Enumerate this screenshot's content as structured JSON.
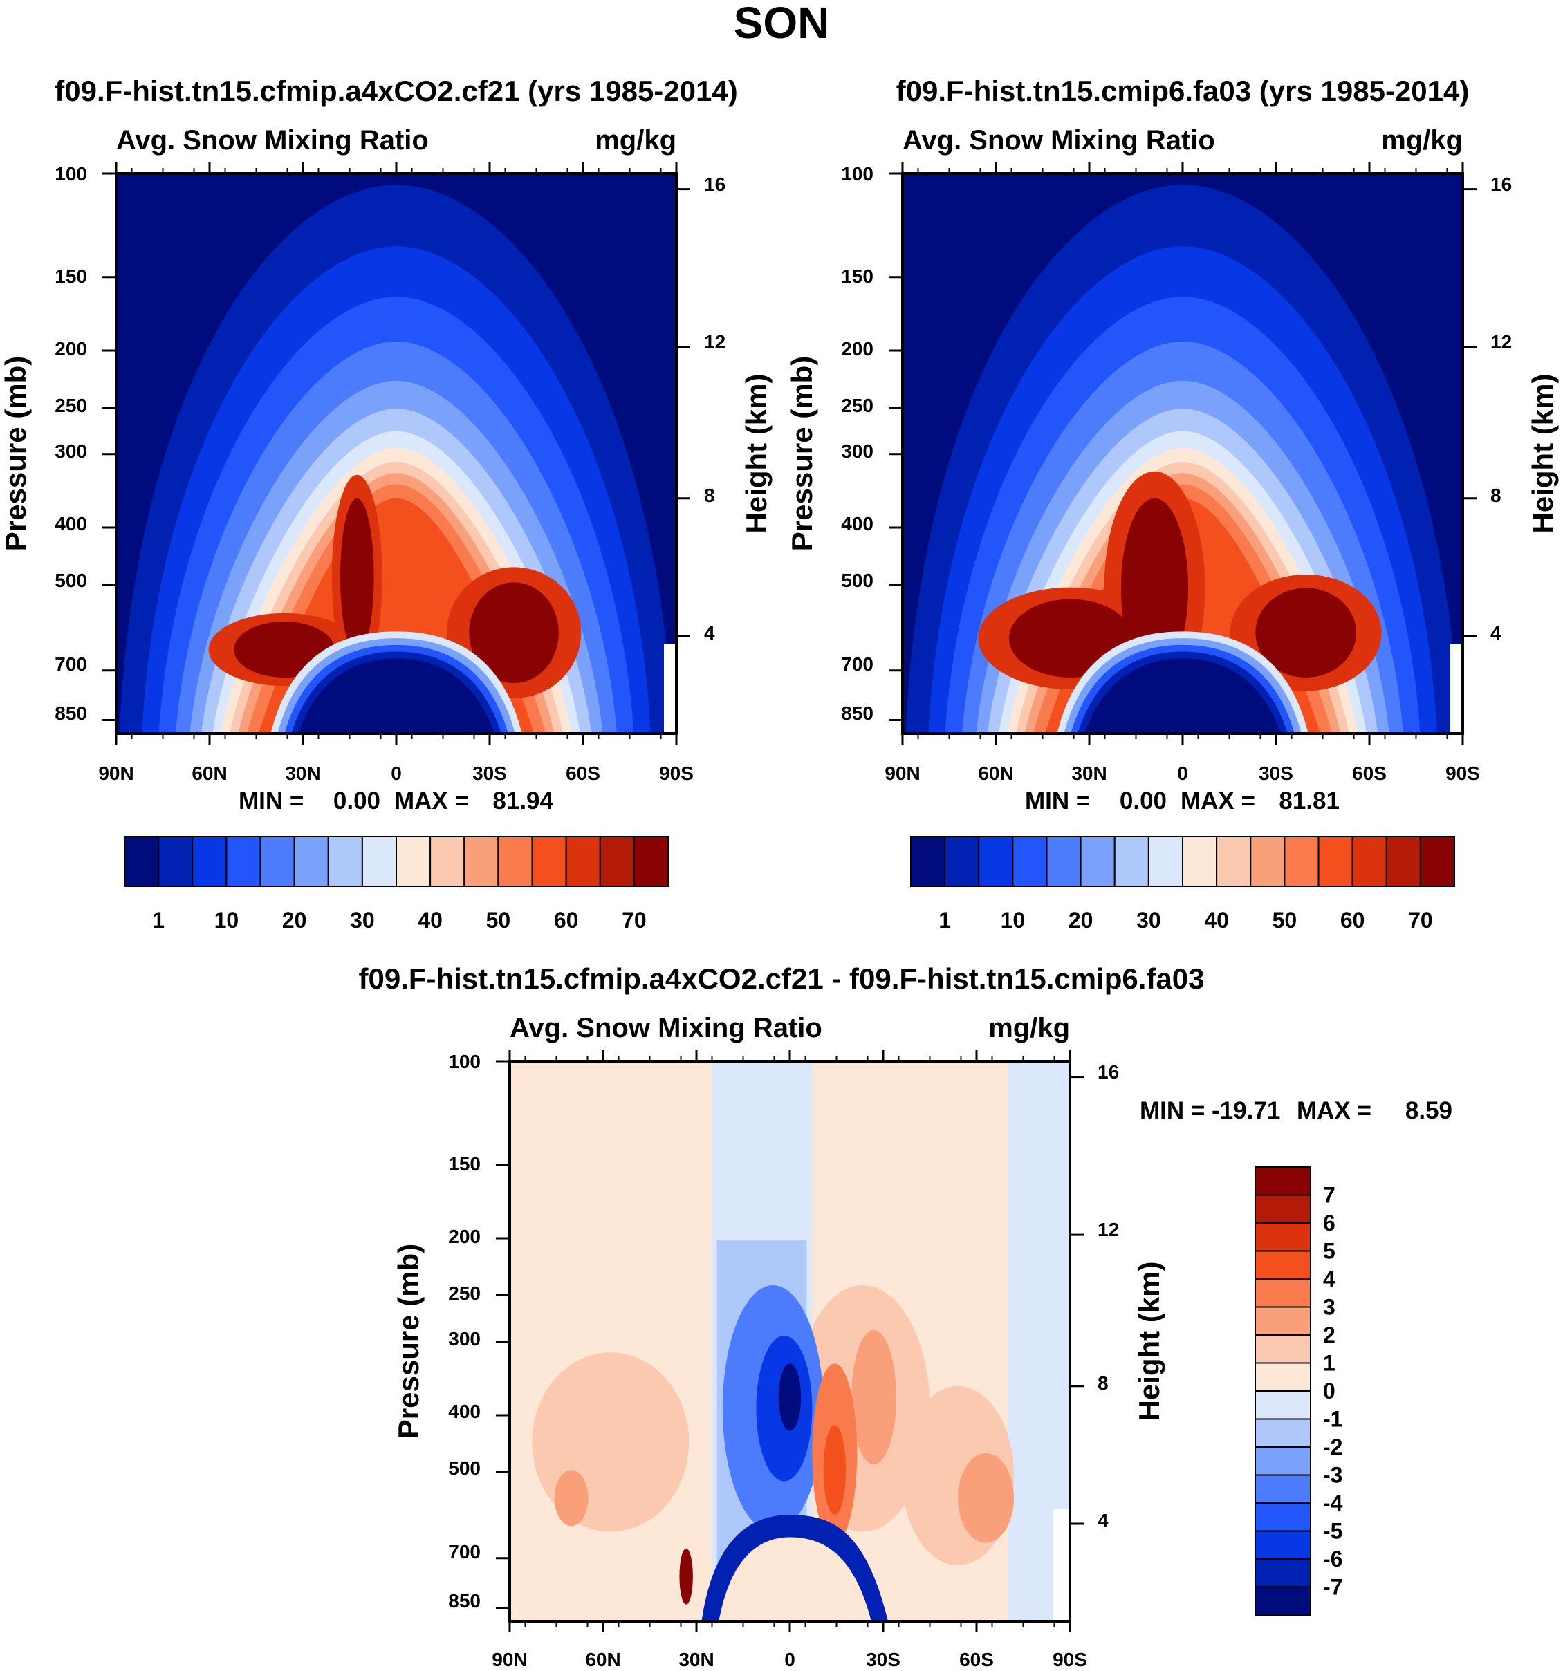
{
  "title": "SON",
  "colors": {
    "abs_scale": [
      "#000c7e",
      "#0021b2",
      "#0838e6",
      "#2356fa",
      "#4c7cfb",
      "#7ba2fb",
      "#aec8fb",
      "#dbe8fc",
      "#fde8d8",
      "#fbc8b0",
      "#f9a07b",
      "#f97a4c",
      "#f4501d",
      "#dc330e",
      "#b31b08",
      "#8a0304"
    ],
    "diff_scale": [
      "#000c7e",
      "#0021b2",
      "#0838e6",
      "#2356fa",
      "#4c7cfb",
      "#7ba2fb",
      "#aec8fb",
      "#dbe8fc",
      "#fde8d8",
      "#fbc8b0",
      "#f9a07b",
      "#f97a4c",
      "#f4501d",
      "#dc330e",
      "#b31b08",
      "#8a0304"
    ]
  },
  "chart_data": [
    {
      "type": "heatmap",
      "title": "f09.F-hist.tn15.cfmip.a4xCO2.cf21 (yrs 1985-2014)",
      "subtitle_left": "Avg. Snow Mixing Ratio",
      "subtitle_right": "mg/kg",
      "xlabel": "",
      "ylabel": "Pressure (mb)",
      "y2label": "Height (km)",
      "x_ticks": [
        "90N",
        "60N",
        "30N",
        "0",
        "30S",
        "60S",
        "90S"
      ],
      "y_ticks": [
        "100",
        "150",
        "200",
        "250",
        "300",
        "400",
        "500",
        "700",
        "850"
      ],
      "y2_ticks": [
        "16",
        "12",
        "8",
        "4"
      ],
      "min_label": "MIN =",
      "min_value": "0.00",
      "max_label": "MAX =",
      "max_value": "81.94",
      "colorbar_labels": [
        "1",
        "10",
        "20",
        "30",
        "40",
        "50",
        "60",
        "70"
      ],
      "peak_lat": [
        -38,
        30
      ],
      "max": 81.94
    },
    {
      "type": "heatmap",
      "title": "f09.F-hist.tn15.cmip6.fa03 (yrs 1985-2014)",
      "subtitle_left": "Avg. Snow Mixing Ratio",
      "subtitle_right": "mg/kg",
      "xlabel": "",
      "ylabel": "Pressure (mb)",
      "y2label": "Height (km)",
      "x_ticks": [
        "90N",
        "60N",
        "30N",
        "0",
        "30S",
        "60S",
        "90S"
      ],
      "y_ticks": [
        "100",
        "150",
        "200",
        "250",
        "300",
        "400",
        "500",
        "700",
        "850"
      ],
      "y2_ticks": [
        "16",
        "12",
        "8",
        "4"
      ],
      "min_label": "MIN =",
      "min_value": "0.00",
      "max_label": "MAX =",
      "max_value": "81.81",
      "colorbar_labels": [
        "1",
        "10",
        "20",
        "30",
        "40",
        "50",
        "60",
        "70"
      ],
      "peak_lat": [
        -38,
        30
      ],
      "max": 81.81
    },
    {
      "type": "heatmap",
      "title": "f09.F-hist.tn15.cfmip.a4xCO2.cf21 - f09.F-hist.tn15.cmip6.fa03",
      "subtitle_left": "Avg. Snow Mixing Ratio",
      "subtitle_right": "mg/kg",
      "xlabel": "",
      "ylabel": "Pressure (mb)",
      "y2label": "Height (km)",
      "x_ticks": [
        "90N",
        "60N",
        "30N",
        "0",
        "30S",
        "60S",
        "90S"
      ],
      "y_ticks": [
        "100",
        "150",
        "200",
        "250",
        "300",
        "400",
        "500",
        "700",
        "850"
      ],
      "y2_ticks": [
        "16",
        "12",
        "8",
        "4"
      ],
      "min_label": "MIN = -19.71",
      "max_label": "MAX =",
      "max_value": "8.59",
      "colorbar_labels": [
        "7",
        "6",
        "5",
        "4",
        "3",
        "2",
        "1",
        "0",
        "-1",
        "-2",
        "-3",
        "-4",
        "-5",
        "-6",
        "-7"
      ]
    }
  ]
}
